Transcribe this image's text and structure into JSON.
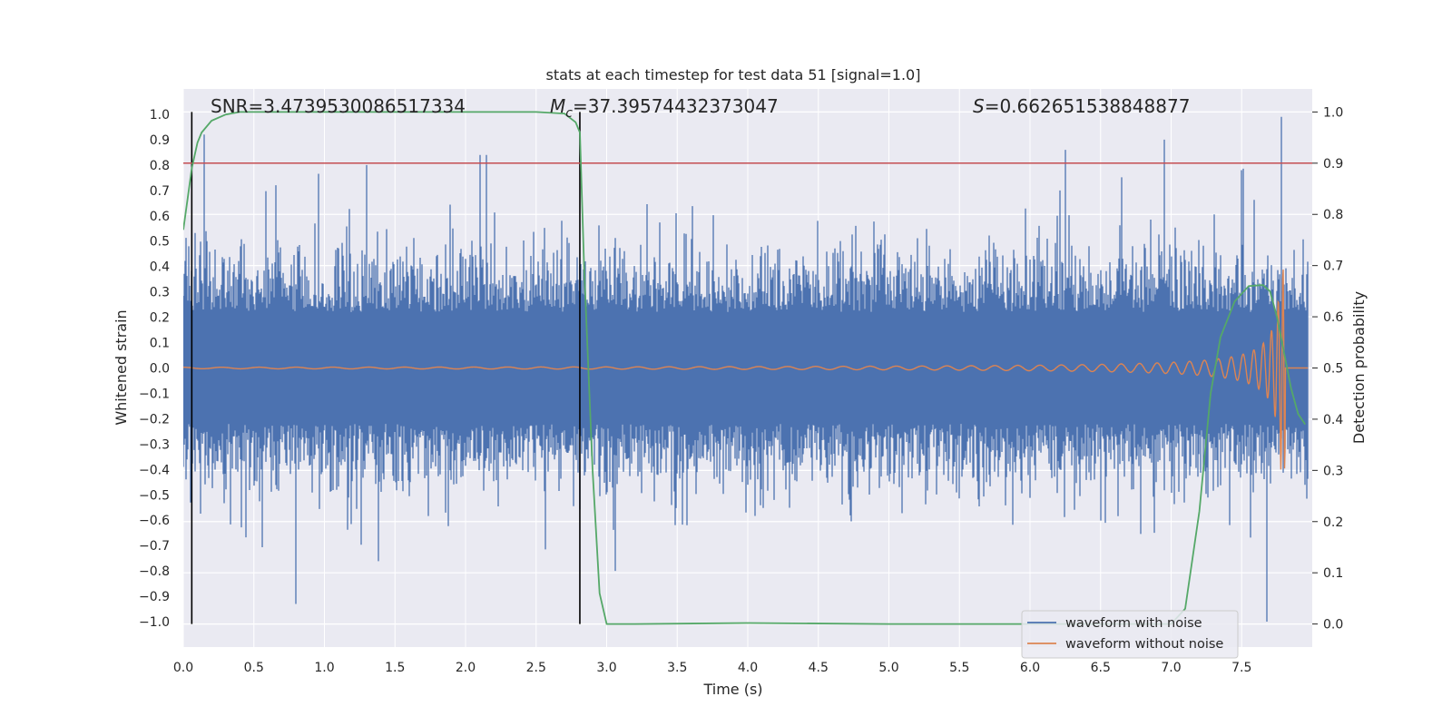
{
  "chart_data": {
    "type": "line",
    "title": "stats at each timestep for test data 51 [signal=1.0]",
    "xlabel": "Time (s)",
    "ylabel": "Whitened strain",
    "y2label": "Detection probability",
    "xlim": [
      0,
      8.0
    ],
    "ylim": [
      -1.1,
      1.1
    ],
    "y2lim": [
      -0.045,
      1.045
    ],
    "x_ticks": [
      "0.0",
      "0.5",
      "1.0",
      "1.5",
      "2.0",
      "2.5",
      "3.0",
      "3.5",
      "4.0",
      "4.5",
      "5.0",
      "5.5",
      "6.0",
      "6.5",
      "7.0",
      "7.5"
    ],
    "y_ticks": [
      "1.0",
      "0.9",
      "0.8",
      "0.7",
      "0.6",
      "0.5",
      "0.4",
      "0.3",
      "0.2",
      "0.1",
      "0.0",
      "−0.1",
      "−0.2",
      "−0.3",
      "−0.4",
      "−0.5",
      "−0.6",
      "−0.7",
      "−0.8",
      "−0.9",
      "−1.0"
    ],
    "y2_ticks": [
      "1.0",
      "0.9",
      "0.8",
      "0.7",
      "0.6",
      "0.5",
      "0.4",
      "0.3",
      "0.2",
      "0.1",
      "0.0"
    ],
    "grid": true,
    "legend_position": "bottom-right",
    "annotations": {
      "snr": "SNR=3.4739530086517334",
      "mc_symbol": "M",
      "mc_subscript": "c",
      "mc_value": "=37.39574432373047",
      "s_symbol": "S",
      "s_value": "=0.662651538848877"
    },
    "vertical_lines_x": [
      0.06,
      2.81
    ],
    "threshold_y2": 0.9,
    "series": [
      {
        "name": "waveform with noise",
        "color": "#4c72b0",
        "description_points": {
          "envelope_typical": 0.4,
          "peaks_x": [
            0.15,
            0.8,
            1.3,
            2.1,
            2.15,
            6.25,
            6.95,
            7.5,
            7.78
          ],
          "peaks_y": [
            0.92,
            -0.93,
            0.8,
            0.84,
            0.84,
            0.86,
            0.9,
            0.78,
            0.99
          ],
          "min_x": 7.68,
          "min_y": -1.0
        }
      },
      {
        "name": "waveform without noise",
        "color": "#dd8452",
        "chirp_start_x": 4.5,
        "merger_x": 7.78,
        "merger_peak": 0.38,
        "merger_trough": -0.36
      },
      {
        "name": "detection probability",
        "color": "#55a868",
        "x": [
          0.0,
          0.03,
          0.06,
          0.1,
          0.13,
          0.2,
          0.3,
          0.4,
          0.6,
          1.0,
          1.5,
          2.0,
          2.5,
          2.7,
          2.78,
          2.81,
          2.84,
          2.9,
          2.95,
          3.0,
          3.2,
          4.0,
          5.0,
          6.0,
          7.0,
          7.1,
          7.2,
          7.28,
          7.35,
          7.45,
          7.55,
          7.65,
          7.7,
          7.75,
          7.8,
          7.85,
          7.9,
          7.95
        ],
        "y": [
          0.77,
          0.83,
          0.89,
          0.94,
          0.96,
          0.983,
          0.995,
          1.0,
          1.0,
          1.0,
          1.0,
          1.0,
          1.0,
          0.997,
          0.98,
          0.96,
          0.7,
          0.3,
          0.06,
          0.0,
          0.0,
          0.002,
          0.0,
          0.0,
          0.0,
          0.03,
          0.22,
          0.45,
          0.56,
          0.63,
          0.66,
          0.662,
          0.65,
          0.6,
          0.53,
          0.46,
          0.41,
          0.39
        ]
      }
    ],
    "threshold_color": "#c44e52",
    "vline_color": "#000000"
  }
}
